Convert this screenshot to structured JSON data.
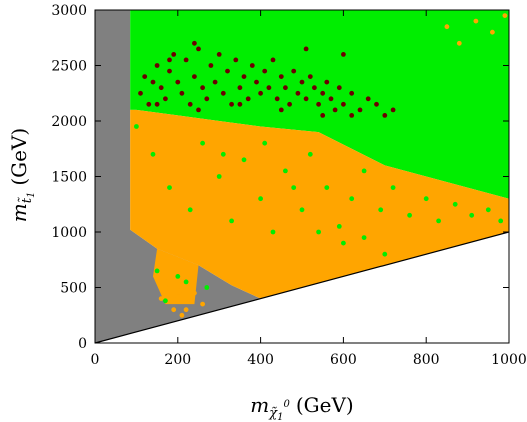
{
  "chart_data": {
    "type": "scatter",
    "title": "",
    "xlabel": "m_χ̃₁⁰ (GeV)",
    "ylabel": "m_t̃₁ (GeV)",
    "xlabel_parts": {
      "main": "m",
      "sub": "χ̃",
      "subsub": "1",
      "sup": "0",
      "unit": "(GeV)"
    },
    "ylabel_parts": {
      "main": "m",
      "sub": "t̃",
      "subsub": "1",
      "unit": "(GeV)"
    },
    "xlim": [
      0,
      1000
    ],
    "ylim": [
      0,
      3000
    ],
    "xticks": [
      0,
      200,
      400,
      600,
      800,
      1000
    ],
    "yticks": [
      0,
      500,
      1000,
      1500,
      2000,
      2500,
      3000
    ],
    "xtick_labels": [
      "0",
      "200",
      "400",
      "600",
      "800",
      "1000"
    ],
    "ytick_labels": [
      "0",
      "500",
      "1000",
      "1500",
      "2000",
      "2500",
      "3000"
    ],
    "grid": false,
    "reference_line": {
      "description": "diagonal boundary",
      "points": [
        [
          0,
          0
        ],
        [
          1000,
          1000
        ]
      ],
      "color": "#000000"
    },
    "colors": {
      "gray": "#808080",
      "green": "#00ee00",
      "orange": "#ffa500",
      "darkred": "#6b0000"
    },
    "regions": [
      {
        "color": "gray",
        "polygon": [
          [
            0,
            0
          ],
          [
            0,
            3000
          ],
          [
            85,
            3000
          ],
          [
            85,
            1020
          ],
          [
            150,
            850
          ],
          [
            250,
            700
          ],
          [
            330,
            520
          ],
          [
            400,
            400
          ],
          [
            0,
            0
          ]
        ]
      },
      {
        "color": "green",
        "polygon": [
          [
            85,
            3000
          ],
          [
            1000,
            3000
          ],
          [
            1000,
            1300
          ],
          [
            900,
            1400
          ],
          [
            800,
            1500
          ],
          [
            700,
            1600
          ],
          [
            620,
            1750
          ],
          [
            540,
            1900
          ],
          [
            400,
            1950
          ],
          [
            300,
            2000
          ],
          [
            200,
            2050
          ],
          [
            100,
            2100
          ],
          [
            85,
            2100
          ]
        ]
      },
      {
        "color": "orange",
        "polygon": [
          [
            85,
            2100
          ],
          [
            100,
            2100
          ],
          [
            200,
            2050
          ],
          [
            300,
            2000
          ],
          [
            400,
            1950
          ],
          [
            540,
            1900
          ],
          [
            620,
            1750
          ],
          [
            700,
            1600
          ],
          [
            800,
            1500
          ],
          [
            900,
            1400
          ],
          [
            1000,
            1300
          ],
          [
            1000,
            1000
          ],
          [
            400,
            400
          ],
          [
            330,
            520
          ],
          [
            250,
            700
          ],
          [
            150,
            850
          ],
          [
            85,
            1020
          ]
        ]
      },
      {
        "color": "orange",
        "polygon": [
          [
            150,
            850
          ],
          [
            250,
            700
          ],
          [
            240,
            350
          ],
          [
            170,
            350
          ],
          [
            140,
            600
          ]
        ]
      }
    ],
    "series": [
      {
        "color": "darkred",
        "points": [
          [
            110,
            2250
          ],
          [
            120,
            2400
          ],
          [
            130,
            2150
          ],
          [
            140,
            2350
          ],
          [
            150,
            2500
          ],
          [
            160,
            2300
          ],
          [
            170,
            2200
          ],
          [
            180,
            2450
          ],
          [
            190,
            2600
          ],
          [
            200,
            2350
          ],
          [
            210,
            2250
          ],
          [
            220,
            2550
          ],
          [
            230,
            2150
          ],
          [
            240,
            2400
          ],
          [
            250,
            2650
          ],
          [
            260,
            2300
          ],
          [
            270,
            2200
          ],
          [
            280,
            2500
          ],
          [
            290,
            2350
          ],
          [
            300,
            2600
          ],
          [
            310,
            2250
          ],
          [
            320,
            2450
          ],
          [
            330,
            2150
          ],
          [
            340,
            2550
          ],
          [
            350,
            2300
          ],
          [
            360,
            2400
          ],
          [
            370,
            2200
          ],
          [
            380,
            2500
          ],
          [
            390,
            2350
          ],
          [
            400,
            2250
          ],
          [
            410,
            2450
          ],
          [
            420,
            2300
          ],
          [
            430,
            2550
          ],
          [
            440,
            2200
          ],
          [
            450,
            2400
          ],
          [
            460,
            2300
          ],
          [
            470,
            2150
          ],
          [
            480,
            2450
          ],
          [
            490,
            2250
          ],
          [
            500,
            2350
          ],
          [
            510,
            2200
          ],
          [
            520,
            2400
          ],
          [
            530,
            2300
          ],
          [
            540,
            2150
          ],
          [
            550,
            2250
          ],
          [
            560,
            2350
          ],
          [
            570,
            2200
          ],
          [
            580,
            2100
          ],
          [
            590,
            2300
          ],
          [
            600,
            2150
          ],
          [
            620,
            2250
          ],
          [
            640,
            2100
          ],
          [
            660,
            2200
          ],
          [
            680,
            2150
          ],
          [
            700,
            2050
          ],
          [
            720,
            2100
          ],
          [
            150,
            2150
          ],
          [
            250,
            2100
          ],
          [
            350,
            2150
          ],
          [
            450,
            2100
          ],
          [
            550,
            2050
          ],
          [
            620,
            2050
          ],
          [
            600,
            2600
          ],
          [
            510,
            2650
          ],
          [
            240,
            2700
          ],
          [
            180,
            2550
          ]
        ]
      },
      {
        "color": "green",
        "points": [
          [
            100,
            1950
          ],
          [
            140,
            1700
          ],
          [
            180,
            1400
          ],
          [
            230,
            1200
          ],
          [
            260,
            1800
          ],
          [
            300,
            1500
          ],
          [
            330,
            1100
          ],
          [
            360,
            1650
          ],
          [
            400,
            1300
          ],
          [
            430,
            1000
          ],
          [
            460,
            1550
          ],
          [
            500,
            1200
          ],
          [
            520,
            1700
          ],
          [
            560,
            1400
          ],
          [
            590,
            1050
          ],
          [
            620,
            1300
          ],
          [
            650,
            1550
          ],
          [
            690,
            1200
          ],
          [
            720,
            1400
          ],
          [
            760,
            1150
          ],
          [
            800,
            1300
          ],
          [
            830,
            1100
          ],
          [
            870,
            1250
          ],
          [
            910,
            1150
          ],
          [
            950,
            1200
          ],
          [
            980,
            1100
          ],
          [
            150,
            650
          ],
          [
            200,
            600
          ],
          [
            270,
            500
          ],
          [
            170,
            380
          ],
          [
            220,
            550
          ],
          [
            310,
            1700
          ],
          [
            410,
            1800
          ],
          [
            480,
            1400
          ],
          [
            540,
            1000
          ],
          [
            600,
            900
          ],
          [
            650,
            950
          ],
          [
            700,
            800
          ]
        ]
      },
      {
        "color": "orange",
        "points": [
          [
            880,
            2700
          ],
          [
            920,
            2900
          ],
          [
            960,
            2800
          ],
          [
            850,
            2850
          ],
          [
            990,
            2950
          ],
          [
            180,
            500
          ],
          [
            200,
            420
          ],
          [
            230,
            380
          ],
          [
            190,
            300
          ],
          [
            210,
            250
          ],
          [
            160,
            400
          ],
          [
            240,
            450
          ],
          [
            260,
            350
          ],
          [
            220,
            300
          ],
          [
            175,
            550
          ],
          [
            205,
            470
          ],
          [
            235,
            520
          ]
        ]
      }
    ]
  }
}
